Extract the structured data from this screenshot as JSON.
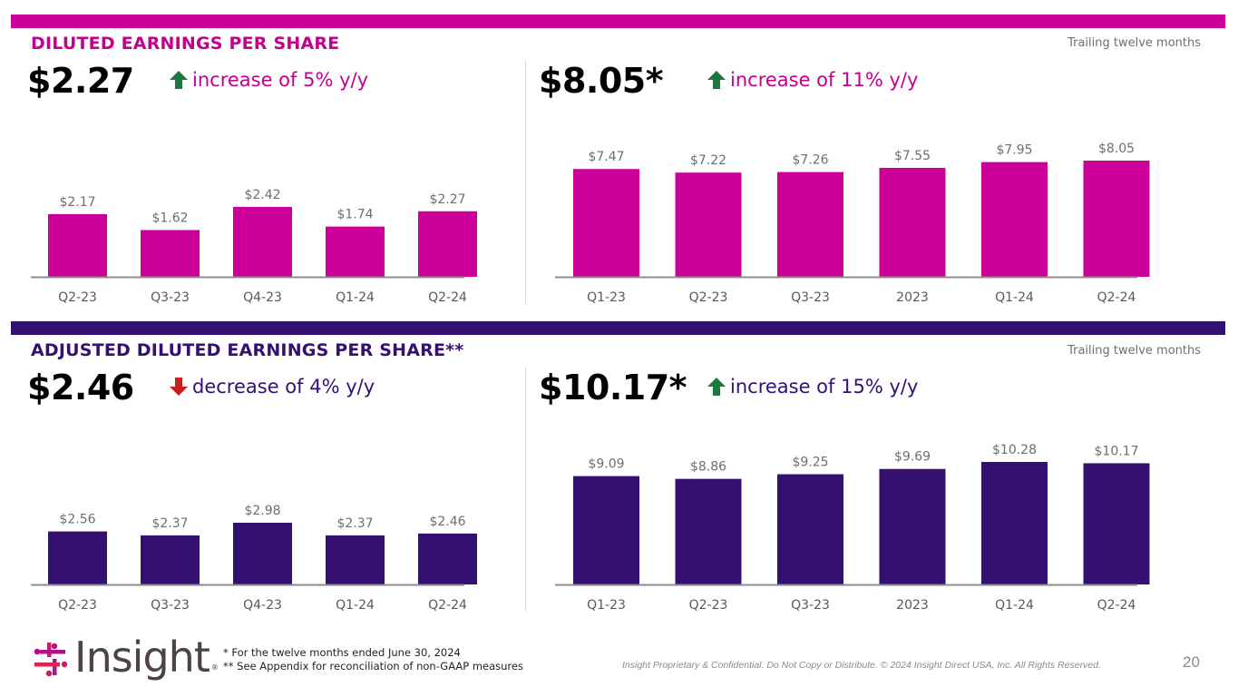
{
  "colors": {
    "magenta": "#cc0099",
    "purple": "#341070",
    "up_arrow": "#1a7a3c",
    "down_arrow": "#c8201e"
  },
  "sections": {
    "diluted": {
      "title": "DILUTED EARNINGS PER SHARE",
      "ttm_label": "Trailing twelve months",
      "quarter_kpi": "$2.27",
      "quarter_change": "increase of 5% y/y",
      "quarter_direction": "up",
      "ttm_kpi": "$8.05*",
      "ttm_change": "increase of 11% y/y",
      "ttm_direction": "up"
    },
    "adjusted": {
      "title": "ADJUSTED DILUTED EARNINGS PER SHARE**",
      "ttm_label": "Trailing twelve months",
      "quarter_kpi": "$2.46",
      "quarter_change": "decrease of 4% y/y",
      "quarter_direction": "down",
      "ttm_kpi": "$10.17*",
      "ttm_change": "increase of 15% y/y",
      "ttm_direction": "up"
    }
  },
  "chart_data": [
    {
      "type": "bar",
      "title": "Diluted Earnings Per Share (Quarterly)",
      "categories": [
        "Q2-23",
        "Q3-23",
        "Q4-23",
        "Q1-24",
        "Q2-24"
      ],
      "values": [
        2.17,
        1.62,
        2.42,
        1.74,
        2.27
      ],
      "labels": [
        "$2.17",
        "$1.62",
        "$2.42",
        "$1.74",
        "$2.27"
      ],
      "color": "#cc0099",
      "ylim": [
        0,
        2.42
      ],
      "grid": false
    },
    {
      "type": "bar",
      "title": "Diluted Earnings Per Share (Trailing twelve months)",
      "categories": [
        "Q1-23",
        "Q2-23",
        "Q3-23",
        "2023",
        "Q1-24",
        "Q2-24"
      ],
      "values": [
        7.47,
        7.22,
        7.26,
        7.55,
        7.95,
        8.05
      ],
      "labels": [
        "$7.47",
        "$7.22",
        "$7.26",
        "$7.55",
        "$7.95",
        "$8.05"
      ],
      "color": "#cc0099",
      "ylim": [
        0,
        8.05
      ],
      "grid": false
    },
    {
      "type": "bar",
      "title": "Adjusted Diluted Earnings Per Share (Quarterly)",
      "categories": [
        "Q2-23",
        "Q3-23",
        "Q4-23",
        "Q1-24",
        "Q2-24"
      ],
      "values": [
        2.56,
        2.37,
        2.98,
        2.37,
        2.46
      ],
      "labels": [
        "$2.56",
        "$2.37",
        "$2.98",
        "$2.37",
        "$2.46"
      ],
      "color": "#341070",
      "ylim": [
        0,
        2.98
      ],
      "grid": false
    },
    {
      "type": "bar",
      "title": "Adjusted Diluted Earnings Per Share (Trailing twelve months)",
      "categories": [
        "Q1-23",
        "Q2-23",
        "Q3-23",
        "2023",
        "Q1-24",
        "Q2-24"
      ],
      "values": [
        9.09,
        8.86,
        9.25,
        9.69,
        10.28,
        10.17
      ],
      "labels": [
        "$9.09",
        "$8.86",
        "$9.25",
        "$9.69",
        "$10.28",
        "$10.17"
      ],
      "color": "#341070",
      "ylim": [
        0,
        10.28
      ],
      "grid": false
    }
  ],
  "footer": {
    "logo_text": "Insight",
    "logo_reg": "®",
    "footnote_1": "* For the twelve months ended June 30, 2024",
    "footnote_2": "** See Appendix for reconciliation of non-GAAP measures",
    "legal": "Insight Proprietary & Confidential. Do Not Copy or Distribute. © 2024 Insight Direct USA, Inc. All Rights Reserved.",
    "page_number": "20"
  }
}
